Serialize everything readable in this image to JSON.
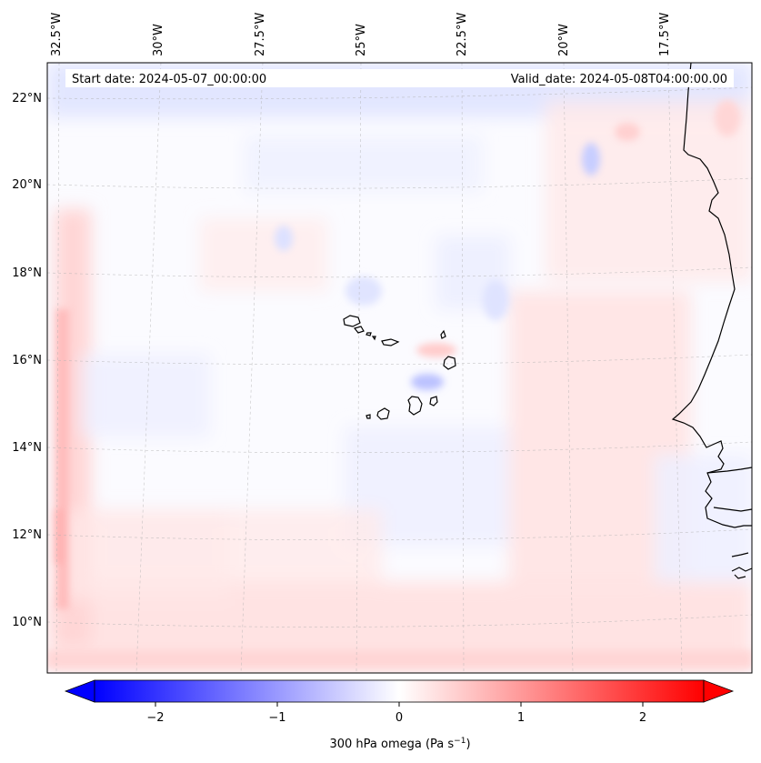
{
  "map": {
    "start_date_label": "Start date: 2024-05-07_00:00:00",
    "valid_date_label": "Valid_date: 2024-05-08T04:00:00.00",
    "lon_labels": [
      "32.5°W",
      "30°W",
      "27.5°W",
      "25°W",
      "22.5°W",
      "20°W",
      "17.5°W"
    ],
    "lat_labels": [
      "22°N",
      "20°N",
      "18°N",
      "16°N",
      "14°N",
      "12°N",
      "10°N"
    ],
    "colorbar": {
      "ticks": [
        "−2",
        "−1",
        "0",
        "1",
        "2"
      ],
      "tick_values": [
        -2,
        -1,
        0,
        1,
        2
      ],
      "range": [
        -2.5,
        2.5
      ],
      "colormap": "bwr",
      "color_low": "#0000ff",
      "color_mid": "#ffffff",
      "color_high": "#ff0000",
      "label_text": "300 hPa omega (Pa s",
      "label_exp": "−1",
      "label_close": ")"
    },
    "grid": "dashed",
    "coastline_color": "#000000"
  }
}
